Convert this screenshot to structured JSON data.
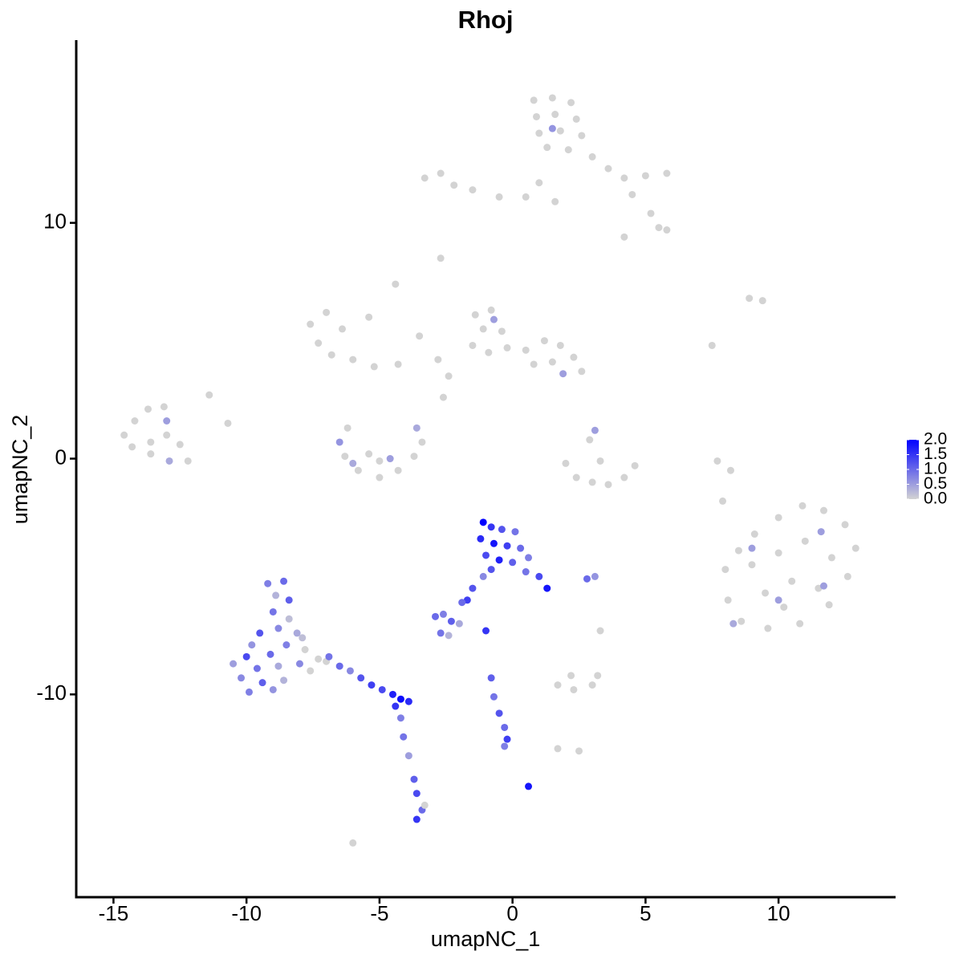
{
  "chart_data": {
    "type": "scatter",
    "title": "Rhoj",
    "x_label": "umapNC_1",
    "y_label": "umapNC_2",
    "xlim": [
      -16.4,
      14.4
    ],
    "ylim": [
      -18.6,
      17.75
    ],
    "xticks": [
      -15,
      -10,
      -5,
      0,
      5,
      10
    ],
    "yticks": [
      -10,
      0,
      10
    ],
    "color_low": "#d3d3d3",
    "color_high": "#0000ff",
    "clim": [
      0,
      2.0
    ],
    "cticks": [
      {
        "value": 0,
        "label": "0.0"
      },
      {
        "value": 0.5,
        "label": "0.5"
      },
      {
        "value": 1.0,
        "label": "1.0"
      },
      {
        "value": 1.5,
        "label": "1.5"
      },
      {
        "value": 2.0,
        "label": "2.0"
      }
    ],
    "x": [
      0.8,
      1.5,
      2.2,
      0.9,
      1.6,
      2.4,
      1.0,
      1.8,
      2.6,
      1.3,
      2.1,
      1.5,
      3.0,
      3.6,
      4.2,
      5.0,
      5.8,
      4.5,
      5.2,
      5.8,
      4.2,
      5.5,
      -3.3,
      -2.7,
      -2.2,
      -1.5,
      -0.5,
      0.5,
      1.0,
      1.6,
      -2.7,
      -7.6,
      -7.0,
      -6.4,
      -7.3,
      -6.8,
      -6.0,
      -5.2,
      -4.3,
      -5.4,
      -4.4,
      -3.5,
      -2.8,
      -2.4,
      -2.6,
      -1.4,
      -0.8,
      -1.1,
      -0.4,
      -1.5,
      -0.9,
      -0.2,
      0.5,
      1.2,
      1.8,
      2.3,
      1.5,
      0.8,
      2.6,
      1.9,
      -0.7,
      -6.5,
      -6.2,
      -6.3,
      -5.8,
      -5.0,
      -4.3,
      -3.7,
      -3.4,
      -3.6,
      -5.4,
      -4.6,
      -6.0,
      -5.0,
      -14.6,
      -14.2,
      -13.7,
      -13.1,
      -13.0,
      -14.3,
      -13.6,
      -13.0,
      -12.5,
      -12.2,
      -13.6,
      -12.9,
      -11.4,
      -10.7,
      2.0,
      2.4,
      3.0,
      3.6,
      4.2,
      4.6,
      3.1,
      3.3,
      2.9,
      8.0,
      8.5,
      9.1,
      10.0,
      10.9,
      11.7,
      12.5,
      12.9,
      12.6,
      11.9,
      10.8,
      9.6,
      8.6,
      8.1,
      9.0,
      10.0,
      11.0,
      12.0,
      9.5,
      10.5,
      11.5,
      10.2,
      11.6,
      9.0,
      11.7,
      10.0,
      8.3,
      7.9,
      8.2,
      7.7,
      9.4,
      8.9,
      7.5,
      1.7,
      2.3,
      3.0,
      3.2,
      2.2,
      2.5,
      1.7,
      3.3,
      -6.0,
      -1.1,
      -0.8,
      -0.4,
      0.1,
      -1.2,
      -0.7,
      -0.2,
      0.3,
      0.6,
      -1.0,
      -0.5,
      0.0,
      0.5,
      -0.8,
      1.0,
      1.3,
      -1.1,
      -1.5,
      -1.7,
      -1.9,
      2.8,
      3.1,
      -1.0,
      0.6,
      -2.9,
      -2.6,
      -2.3,
      -2.0,
      -2.7,
      -2.4,
      -9.2,
      -8.6,
      -8.9,
      -8.4,
      -9.0,
      -8.4,
      -8.8,
      -8.1,
      -9.5,
      -9.8,
      -8.5,
      -7.8,
      -9.1,
      -10.0,
      -10.5,
      -9.6,
      -8.8,
      -8.0,
      -7.3,
      -10.2,
      -9.4,
      -8.6,
      -7.6,
      -9.9,
      -9.0,
      -7.9,
      -7.0,
      -6.9,
      -6.5,
      -6.1,
      -5.7,
      -5.3,
      -4.9,
      -4.5,
      -4.2,
      -3.9,
      -4.4,
      -4.2,
      -4.1,
      -3.9,
      -3.7,
      -3.6,
      -3.4,
      -3.6,
      -3.3,
      -0.8,
      -0.7,
      -0.5,
      -0.3,
      -0.2,
      -0.3
    ],
    "y": [
      15.2,
      15.3,
      15.1,
      14.5,
      14.6,
      14.4,
      13.8,
      13.9,
      13.7,
      13.2,
      13.1,
      14.0,
      12.8,
      12.3,
      11.9,
      12.0,
      12.1,
      11.2,
      10.4,
      9.7,
      9.4,
      9.8,
      11.9,
      12.1,
      11.6,
      11.4,
      11.1,
      11.1,
      11.7,
      10.9,
      8.5,
      5.7,
      6.2,
      5.5,
      4.9,
      4.4,
      4.2,
      3.9,
      4.0,
      6.0,
      7.4,
      5.2,
      4.2,
      3.5,
      2.6,
      6.1,
      6.3,
      5.5,
      5.4,
      4.8,
      4.5,
      4.7,
      4.6,
      5.0,
      4.8,
      4.3,
      4.1,
      4.0,
      3.7,
      3.6,
      5.9,
      0.7,
      1.3,
      0.1,
      -0.5,
      -0.8,
      -0.5,
      0.1,
      0.7,
      1.3,
      0.2,
      0.0,
      -0.2,
      -0.1,
      1.0,
      1.6,
      2.1,
      2.2,
      1.6,
      0.5,
      0.7,
      1.0,
      0.6,
      -0.1,
      0.2,
      -0.1,
      2.7,
      1.5,
      -0.2,
      -0.8,
      -1.0,
      -1.1,
      -0.8,
      -0.3,
      1.2,
      -0.1,
      0.8,
      -4.7,
      -3.9,
      -3.2,
      -2.5,
      -2.0,
      -2.2,
      -2.8,
      -3.8,
      -5.0,
      -6.2,
      -7.0,
      -7.2,
      -6.9,
      -6.0,
      -4.5,
      -4.0,
      -3.5,
      -4.2,
      -5.7,
      -5.2,
      -5.5,
      -6.3,
      -3.1,
      -3.8,
      -5.4,
      -6.0,
      -7.0,
      -1.8,
      -0.5,
      -0.1,
      6.7,
      6.8,
      4.8,
      -9.6,
      -9.8,
      -9.6,
      -9.2,
      -9.2,
      -12.4,
      -12.3,
      -7.3,
      -16.3,
      -2.7,
      -2.9,
      -3.0,
      -3.1,
      -3.4,
      -3.6,
      -3.7,
      -3.8,
      -4.2,
      -4.1,
      -4.3,
      -4.4,
      -4.8,
      -4.7,
      -5.0,
      -5.5,
      -5.0,
      -5.5,
      -6.0,
      -6.1,
      -5.1,
      -5.0,
      -7.3,
      -13.9,
      -6.7,
      -6.6,
      -6.9,
      -7.0,
      -7.4,
      -7.5,
      -5.3,
      -5.2,
      -5.8,
      -6.0,
      -6.5,
      -6.8,
      -7.2,
      -7.4,
      -7.4,
      -7.9,
      -7.9,
      -8.1,
      -8.3,
      -8.4,
      -8.7,
      -8.9,
      -8.8,
      -8.7,
      -8.5,
      -9.3,
      -9.5,
      -9.4,
      -9.0,
      -9.9,
      -9.8,
      -7.6,
      -8.6,
      -8.4,
      -8.8,
      -9.0,
      -9.3,
      -9.6,
      -9.8,
      -10.0,
      -10.2,
      -10.3,
      -10.5,
      -11.0,
      -11.8,
      -12.6,
      -13.6,
      -14.2,
      -14.9,
      -15.3,
      -14.7,
      -9.3,
      -10.1,
      -10.8,
      -11.4,
      -11.9,
      -12.2
    ],
    "values": [
      0,
      0,
      0,
      0,
      0,
      0,
      0,
      0,
      0,
      0,
      0,
      0.6,
      0,
      0,
      0,
      0,
      0,
      0,
      0,
      0,
      0,
      0,
      0,
      0,
      0,
      0,
      0,
      0,
      0,
      0,
      0,
      0,
      0,
      0,
      0,
      0,
      0,
      0,
      0,
      0,
      0,
      0,
      0,
      0,
      0,
      0,
      0,
      0,
      0,
      0,
      0,
      0,
      0,
      0,
      0,
      0,
      0,
      0,
      0,
      0.5,
      0.5,
      0.6,
      0,
      0,
      0,
      0,
      0,
      0,
      0,
      0.4,
      0,
      0.5,
      0.4,
      0,
      0,
      0,
      0,
      0,
      0.5,
      0,
      0,
      0,
      0,
      0,
      0,
      0.4,
      0,
      0,
      0,
      0,
      0,
      0,
      0,
      0,
      0.5,
      0,
      0,
      0,
      0,
      0,
      0,
      0,
      0,
      0,
      0,
      0,
      0,
      0,
      0,
      0,
      0,
      0,
      0,
      0,
      0,
      0,
      0,
      0,
      0,
      0.5,
      0.5,
      0.5,
      0.5,
      0.4,
      0,
      0,
      0,
      0,
      0,
      0,
      0,
      0,
      0,
      0,
      0,
      0,
      0,
      0,
      0,
      2.0,
      1.5,
      1.2,
      0.9,
      1.6,
      1.8,
      1.4,
      1.0,
      0.8,
      1.3,
      1.7,
      1.1,
      0.9,
      1.2,
      1.3,
      1.8,
      0.7,
      1.2,
      1.4,
      1.0,
      1.0,
      0.6,
      1.5,
      1.8,
      1.0,
      0.8,
      1.1,
      0.4,
      0.9,
      0.3,
      0.8,
      1.0,
      0.3,
      1.1,
      0.9,
      0.2,
      0.7,
      0.4,
      1.2,
      0.6,
      0.8,
      0,
      1.0,
      1.3,
      0.5,
      0.9,
      0.4,
      0.7,
      0,
      0.7,
      1.1,
      0.3,
      0,
      0.8,
      0.6,
      0.2,
      0,
      0.9,
      1.0,
      0.7,
      1.2,
      1.4,
      1.3,
      1.7,
      1.9,
      1.6,
      1.5,
      0.8,
      0.9,
      0.5,
      1.1,
      1.3,
      1.0,
      1.5,
      0,
      1.1,
      0.9,
      1.2,
      1.0,
      1.4,
      0.8
    ]
  }
}
